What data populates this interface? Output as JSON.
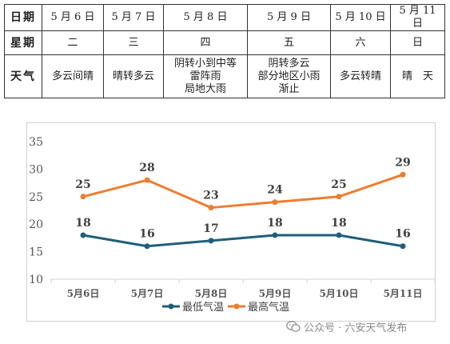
{
  "forecast": {
    "rows": [
      {
        "label": "日期",
        "cells": [
          "5 月 6 日",
          "5 月 7 日",
          "5 月 8 日",
          "5 月 9 日",
          "5 月 10 日",
          "5 月 11 日"
        ]
      },
      {
        "label": "星期",
        "cells": [
          "二",
          "三",
          "四",
          "五",
          "六",
          "日"
        ]
      },
      {
        "label": "天气",
        "cells": [
          "多云间晴",
          "晴转多云",
          "阴转小到中等\n雷阵雨\n局地大雨",
          "阴转多云\n部分地区小雨\n渐止",
          "多云转晴",
          "晴　天"
        ]
      }
    ]
  },
  "chart_data": {
    "type": "line",
    "categories": [
      "5月6日",
      "5月7日",
      "5月8日",
      "5月9日",
      "5月10日",
      "5月11日"
    ],
    "series": [
      {
        "name": "最低气温",
        "color": "#1f5f7a",
        "values": [
          18,
          16,
          17,
          18,
          18,
          16
        ]
      },
      {
        "name": "最高气温",
        "color": "#ed7d31",
        "values": [
          25,
          28,
          23,
          24,
          25,
          29
        ]
      }
    ],
    "ylim": [
      10,
      35
    ],
    "yticks": [
      10,
      15,
      20,
      25,
      30,
      35
    ],
    "grid": false,
    "legend_position": "bottom",
    "data_labels": true,
    "title": "",
    "xlabel": "",
    "ylabel": ""
  },
  "watermark": {
    "icon": "wechat-public-account-icon",
    "text": "公众号 · 六安天气发布"
  }
}
